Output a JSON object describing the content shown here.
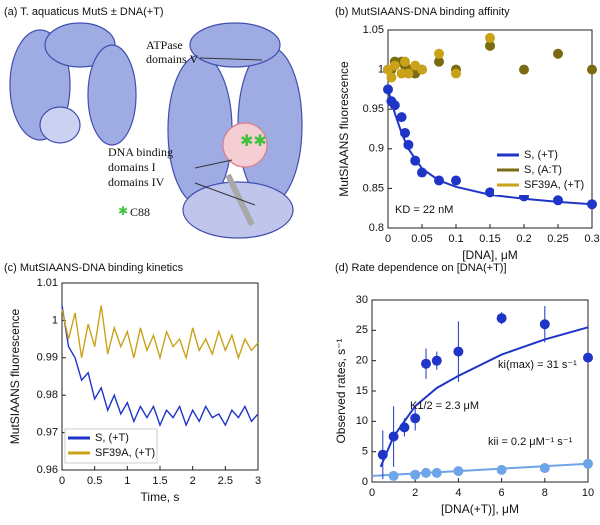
{
  "panel_a": {
    "title": "(a) T. aquaticus MutS ± DNA(+T)",
    "labels": [
      "ATPase",
      "domains V",
      "DNA binding",
      "domains I",
      "domains IV",
      "C88"
    ]
  },
  "chart_data": [
    {
      "type": "scatter",
      "title": "(b) MutSIAANS-DNA binding affinity",
      "xlabel": "[DNA], μM",
      "ylabel": "MutSIAANS fluorescence",
      "annotations": [
        "KD = 22 nM"
      ],
      "xlim": [
        0,
        0.3
      ],
      "xticks": [
        0,
        0.05,
        0.1,
        0.15,
        0.2,
        0.25,
        0.3
      ],
      "ylim": [
        0.8,
        1.05
      ],
      "yticks": [
        0.8,
        0.85,
        0.9,
        0.95,
        1,
        1.05
      ],
      "legend": "right",
      "series": [
        {
          "name": "S, (+T)",
          "color": "#1f35c8",
          "x": [
            0,
            0.005,
            0.01,
            0.02,
            0.025,
            0.03,
            0.04,
            0.05,
            0.075,
            0.1,
            0.15,
            0.2,
            0.25,
            0.3
          ],
          "values": [
            0.975,
            0.96,
            0.955,
            0.94,
            0.92,
            0.905,
            0.885,
            0.87,
            0.86,
            0.86,
            0.845,
            0.84,
            0.835,
            0.83
          ]
        },
        {
          "name": "S, (A:T)",
          "color": "#7a6a12",
          "x": [
            0,
            0.005,
            0.01,
            0.02,
            0.025,
            0.03,
            0.04,
            0.05,
            0.075,
            0.1,
            0.15,
            0.2,
            0.25,
            0.3
          ],
          "values": [
            1.0,
            1.0,
            1.01,
            1.01,
            1.005,
            1.0,
            0.995,
            1.0,
            1.01,
            1.0,
            1.03,
            1.0,
            1.02,
            1.0
          ]
        },
        {
          "name": "SF39A, (+T)",
          "color": "#c9a21a",
          "x": [
            0,
            0.005,
            0.01,
            0.02,
            0.025,
            0.03,
            0.04,
            0.05,
            0.075,
            0.1,
            0.15
          ],
          "values": [
            1.0,
            0.99,
            1.005,
            0.995,
            1.01,
            0.995,
            1.005,
            1.0,
            1.02,
            0.995,
            1.04
          ]
        }
      ],
      "fits": [
        {
          "color": "#1f35c8",
          "x": [
            0,
            0.01,
            0.02,
            0.03,
            0.05,
            0.075,
            0.1,
            0.15,
            0.2,
            0.25,
            0.3
          ],
          "values": [
            0.975,
            0.945,
            0.92,
            0.9,
            0.875,
            0.86,
            0.852,
            0.842,
            0.837,
            0.833,
            0.83
          ]
        }
      ]
    },
    {
      "type": "line",
      "title": "(c) MutSIAANS-DNA binding kinetics",
      "xlabel": "Time, s",
      "ylabel": "MutSIAANS fluorescence",
      "xlim": [
        0,
        3
      ],
      "xticks": [
        0,
        0.5,
        1,
        1.5,
        2,
        2.5,
        3
      ],
      "ylim": [
        0.96,
        1.01
      ],
      "yticks": [
        0.96,
        0.97,
        0.98,
        0.99,
        1,
        1.01
      ],
      "legend": "lower left",
      "series": [
        {
          "name": "S, (+T)",
          "color": "#1f35c8",
          "x": [
            0,
            0.1,
            0.2,
            0.3,
            0.4,
            0.5,
            0.6,
            0.7,
            0.8,
            0.9,
            1,
            1.1,
            1.2,
            1.3,
            1.4,
            1.5,
            1.6,
            1.7,
            1.8,
            1.9,
            2,
            2.1,
            2.2,
            2.3,
            2.4,
            2.5,
            2.6,
            2.7,
            2.8,
            2.9,
            3
          ],
          "values": [
            1.004,
            0.993,
            0.99,
            0.984,
            0.986,
            0.979,
            0.982,
            0.976,
            0.98,
            0.975,
            0.978,
            0.973,
            0.977,
            0.974,
            0.977,
            0.972,
            0.976,
            0.974,
            0.977,
            0.972,
            0.976,
            0.973,
            0.977,
            0.974,
            0.975,
            0.972,
            0.976,
            0.974,
            0.977,
            0.973,
            0.975
          ]
        },
        {
          "name": "SF39A, (+T)",
          "color": "#c9a21a",
          "x": [
            0,
            0.1,
            0.2,
            0.3,
            0.4,
            0.5,
            0.6,
            0.7,
            0.8,
            0.9,
            1,
            1.1,
            1.2,
            1.3,
            1.4,
            1.5,
            1.6,
            1.7,
            1.8,
            1.9,
            2,
            2.1,
            2.2,
            2.3,
            2.4,
            2.5,
            2.6,
            2.7,
            2.8,
            2.9,
            3
          ],
          "values": [
            1.003,
            0.995,
            1.002,
            0.99,
            0.999,
            0.993,
            1.004,
            0.991,
            0.998,
            0.993,
            0.997,
            0.99,
            0.998,
            0.992,
            0.996,
            0.99,
            0.997,
            0.993,
            0.995,
            0.99,
            0.998,
            0.992,
            0.995,
            0.991,
            0.997,
            0.992,
            0.996,
            0.99,
            0.995,
            0.992,
            0.994
          ]
        }
      ]
    },
    {
      "type": "scatter",
      "title": "(d) Rate dependence on [DNA(+T)]",
      "xlabel": "[DNA(+T)], μM",
      "ylabel": "Observed rates, s⁻¹",
      "annotations": [
        "ki(max) = 31 s⁻¹",
        "K1/2 = 2.3 μM",
        "kii = 0.2 μM⁻¹ s⁻¹"
      ],
      "xlim": [
        0,
        10
      ],
      "xticks": [
        0,
        2,
        4,
        6,
        8,
        10
      ],
      "ylim": [
        0,
        30
      ],
      "yticks": [
        0,
        5,
        10,
        15,
        20,
        25,
        30
      ],
      "series": [
        {
          "color": "#1f35c8",
          "x": [
            0.5,
            1,
            1.5,
            2,
            2.5,
            3,
            4,
            6,
            8,
            10
          ],
          "values": [
            4.5,
            7.5,
            9,
            10.5,
            19.5,
            20,
            21.5,
            27,
            26,
            20.5
          ],
          "errors": [
            4,
            5,
            1.5,
            2,
            2.5,
            1.5,
            5,
            1,
            3,
            1
          ]
        },
        {
          "color": "#6ea4e8",
          "x": [
            1,
            2,
            2.5,
            3,
            4,
            6,
            8,
            10
          ],
          "values": [
            1,
            1.2,
            1.5,
            1.5,
            1.8,
            2,
            2.3,
            3
          ]
        }
      ],
      "fits": [
        {
          "color": "#1f35c8",
          "x": [
            0.4,
            1,
            2,
            3,
            4,
            6,
            8,
            10
          ],
          "values": [
            2.5,
            7.5,
            12.5,
            15.5,
            17.5,
            21,
            23.5,
            25.5
          ]
        },
        {
          "color": "#6ea4e8",
          "x": [
            0,
            10
          ],
          "values": [
            1,
            3
          ]
        }
      ]
    }
  ]
}
